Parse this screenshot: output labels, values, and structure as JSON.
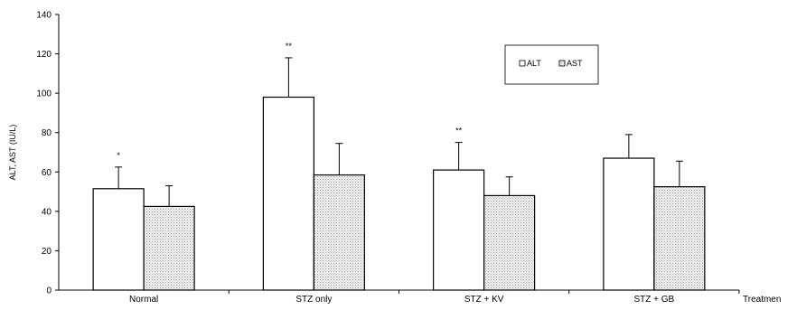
{
  "chart_data": {
    "type": "bar",
    "title": "",
    "xlabel": "Treatmen",
    "ylabel": "ALT, AST (IU/L)",
    "ylim": [
      0,
      140
    ],
    "yticks": [
      0,
      20,
      40,
      60,
      80,
      100,
      120,
      140
    ],
    "categories": [
      "Normal",
      "STZ only",
      "STZ + KV",
      "STZ + GB"
    ],
    "series": [
      {
        "name": "ALT",
        "values": [
          51.5,
          98,
          61,
          67
        ],
        "errors": [
          11,
          20,
          14,
          12
        ],
        "fill": "#ffffff"
      },
      {
        "name": "AST",
        "values": [
          42.5,
          58.5,
          48,
          52.5
        ],
        "errors": [
          10.5,
          16,
          9.5,
          13
        ],
        "fill": "#dcdcdc"
      }
    ],
    "annotations": [
      "*",
      "",
      "**",
      "",
      "**",
      ""
    ],
    "legend": {
      "placement": "top-right",
      "labels": [
        "ALT",
        "AST"
      ]
    },
    "grid": false
  }
}
